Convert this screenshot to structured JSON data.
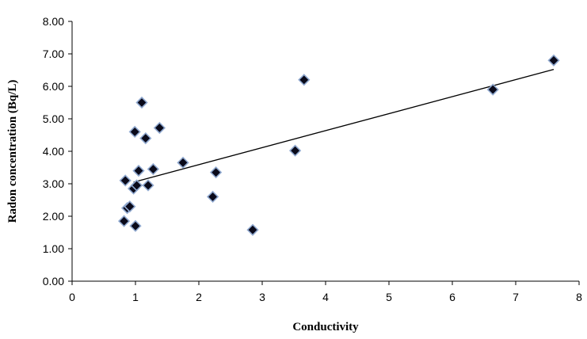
{
  "chart_data": {
    "type": "scatter",
    "title": "",
    "xlabel": "Conductivity",
    "ylabel": "Radon concentration  (Bq/L)",
    "xlim": [
      0,
      8
    ],
    "ylim": [
      0,
      8
    ],
    "x_ticks": [
      "0",
      "1",
      "2",
      "3",
      "4",
      "5",
      "6",
      "7",
      "8"
    ],
    "y_ticks": [
      "0.00",
      "1.00",
      "2.00",
      "3.00",
      "4.00",
      "5.00",
      "6.00",
      "7.00",
      "8.00"
    ],
    "grid": false,
    "legend": "none",
    "marker": "diamond",
    "marker_fill": "#0a0a1a",
    "marker_stroke": "#8fa8cf",
    "series": [
      {
        "x": [
          0.82,
          0.84,
          0.87,
          0.91,
          0.97,
          0.99,
          1.0,
          1.02,
          1.05,
          1.1,
          1.16,
          1.2,
          1.28,
          1.38,
          1.75,
          2.22,
          2.27,
          2.85,
          3.52,
          3.66,
          6.64,
          7.6
        ],
        "y": [
          1.85,
          3.1,
          2.25,
          2.3,
          2.85,
          4.6,
          1.7,
          2.95,
          3.4,
          5.5,
          4.4,
          2.95,
          3.45,
          4.72,
          3.65,
          2.6,
          3.35,
          1.58,
          4.02,
          6.2,
          5.9,
          6.8
        ]
      }
    ],
    "trendline": {
      "x": [
        0.97,
        7.6
      ],
      "y": [
        3.05,
        6.52
      ]
    }
  }
}
